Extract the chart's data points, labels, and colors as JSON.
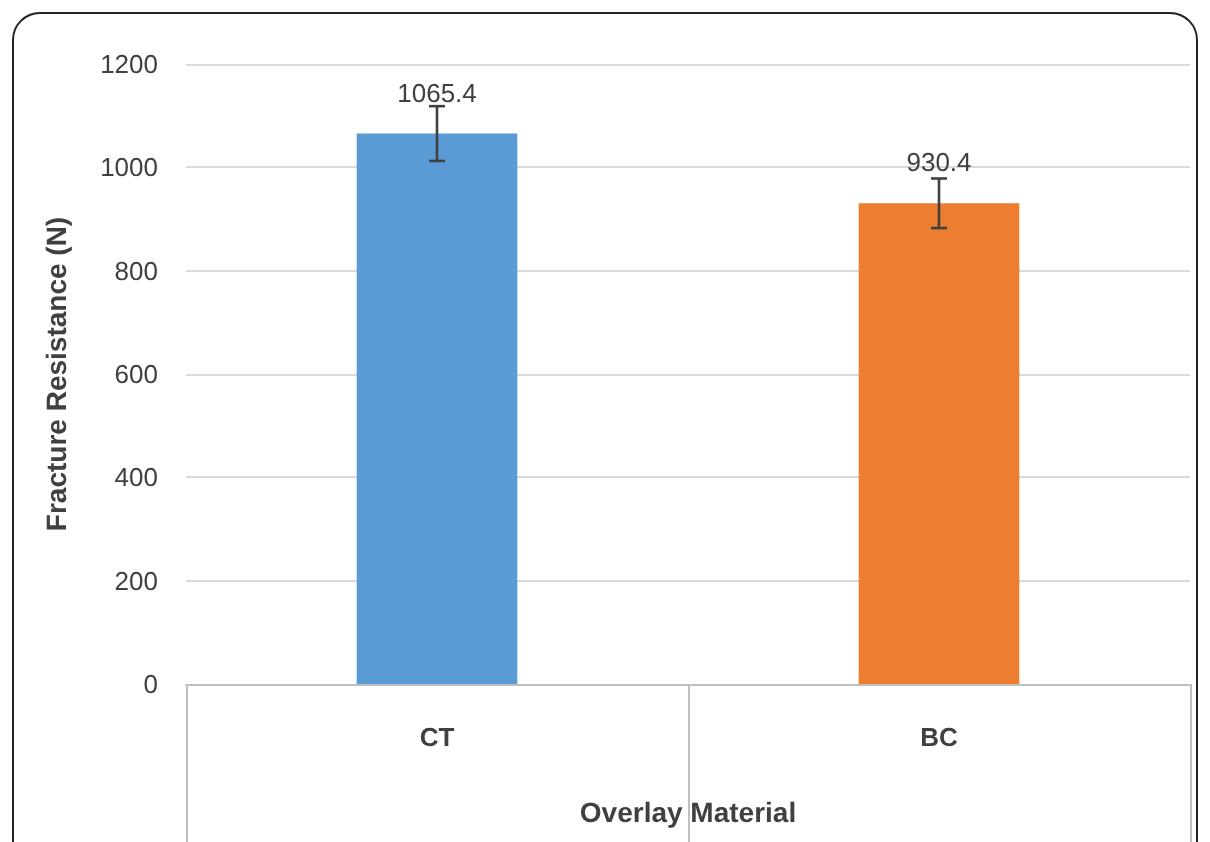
{
  "chart_data": {
    "type": "bar",
    "xlabel": "Overlay Material",
    "ylabel": "Fracture Resistance (N)",
    "categories": [
      "CT",
      "BC"
    ],
    "values": [
      1065.4,
      930.4
    ],
    "colors": [
      "#5b9bd5",
      "#ed7d31"
    ],
    "errors": [
      53,
      48
    ],
    "data_labels": true,
    "ylim": [
      0,
      1200
    ],
    "yticks": [
      0,
      200,
      400,
      600,
      800,
      1000,
      1200
    ],
    "grid": "y"
  }
}
